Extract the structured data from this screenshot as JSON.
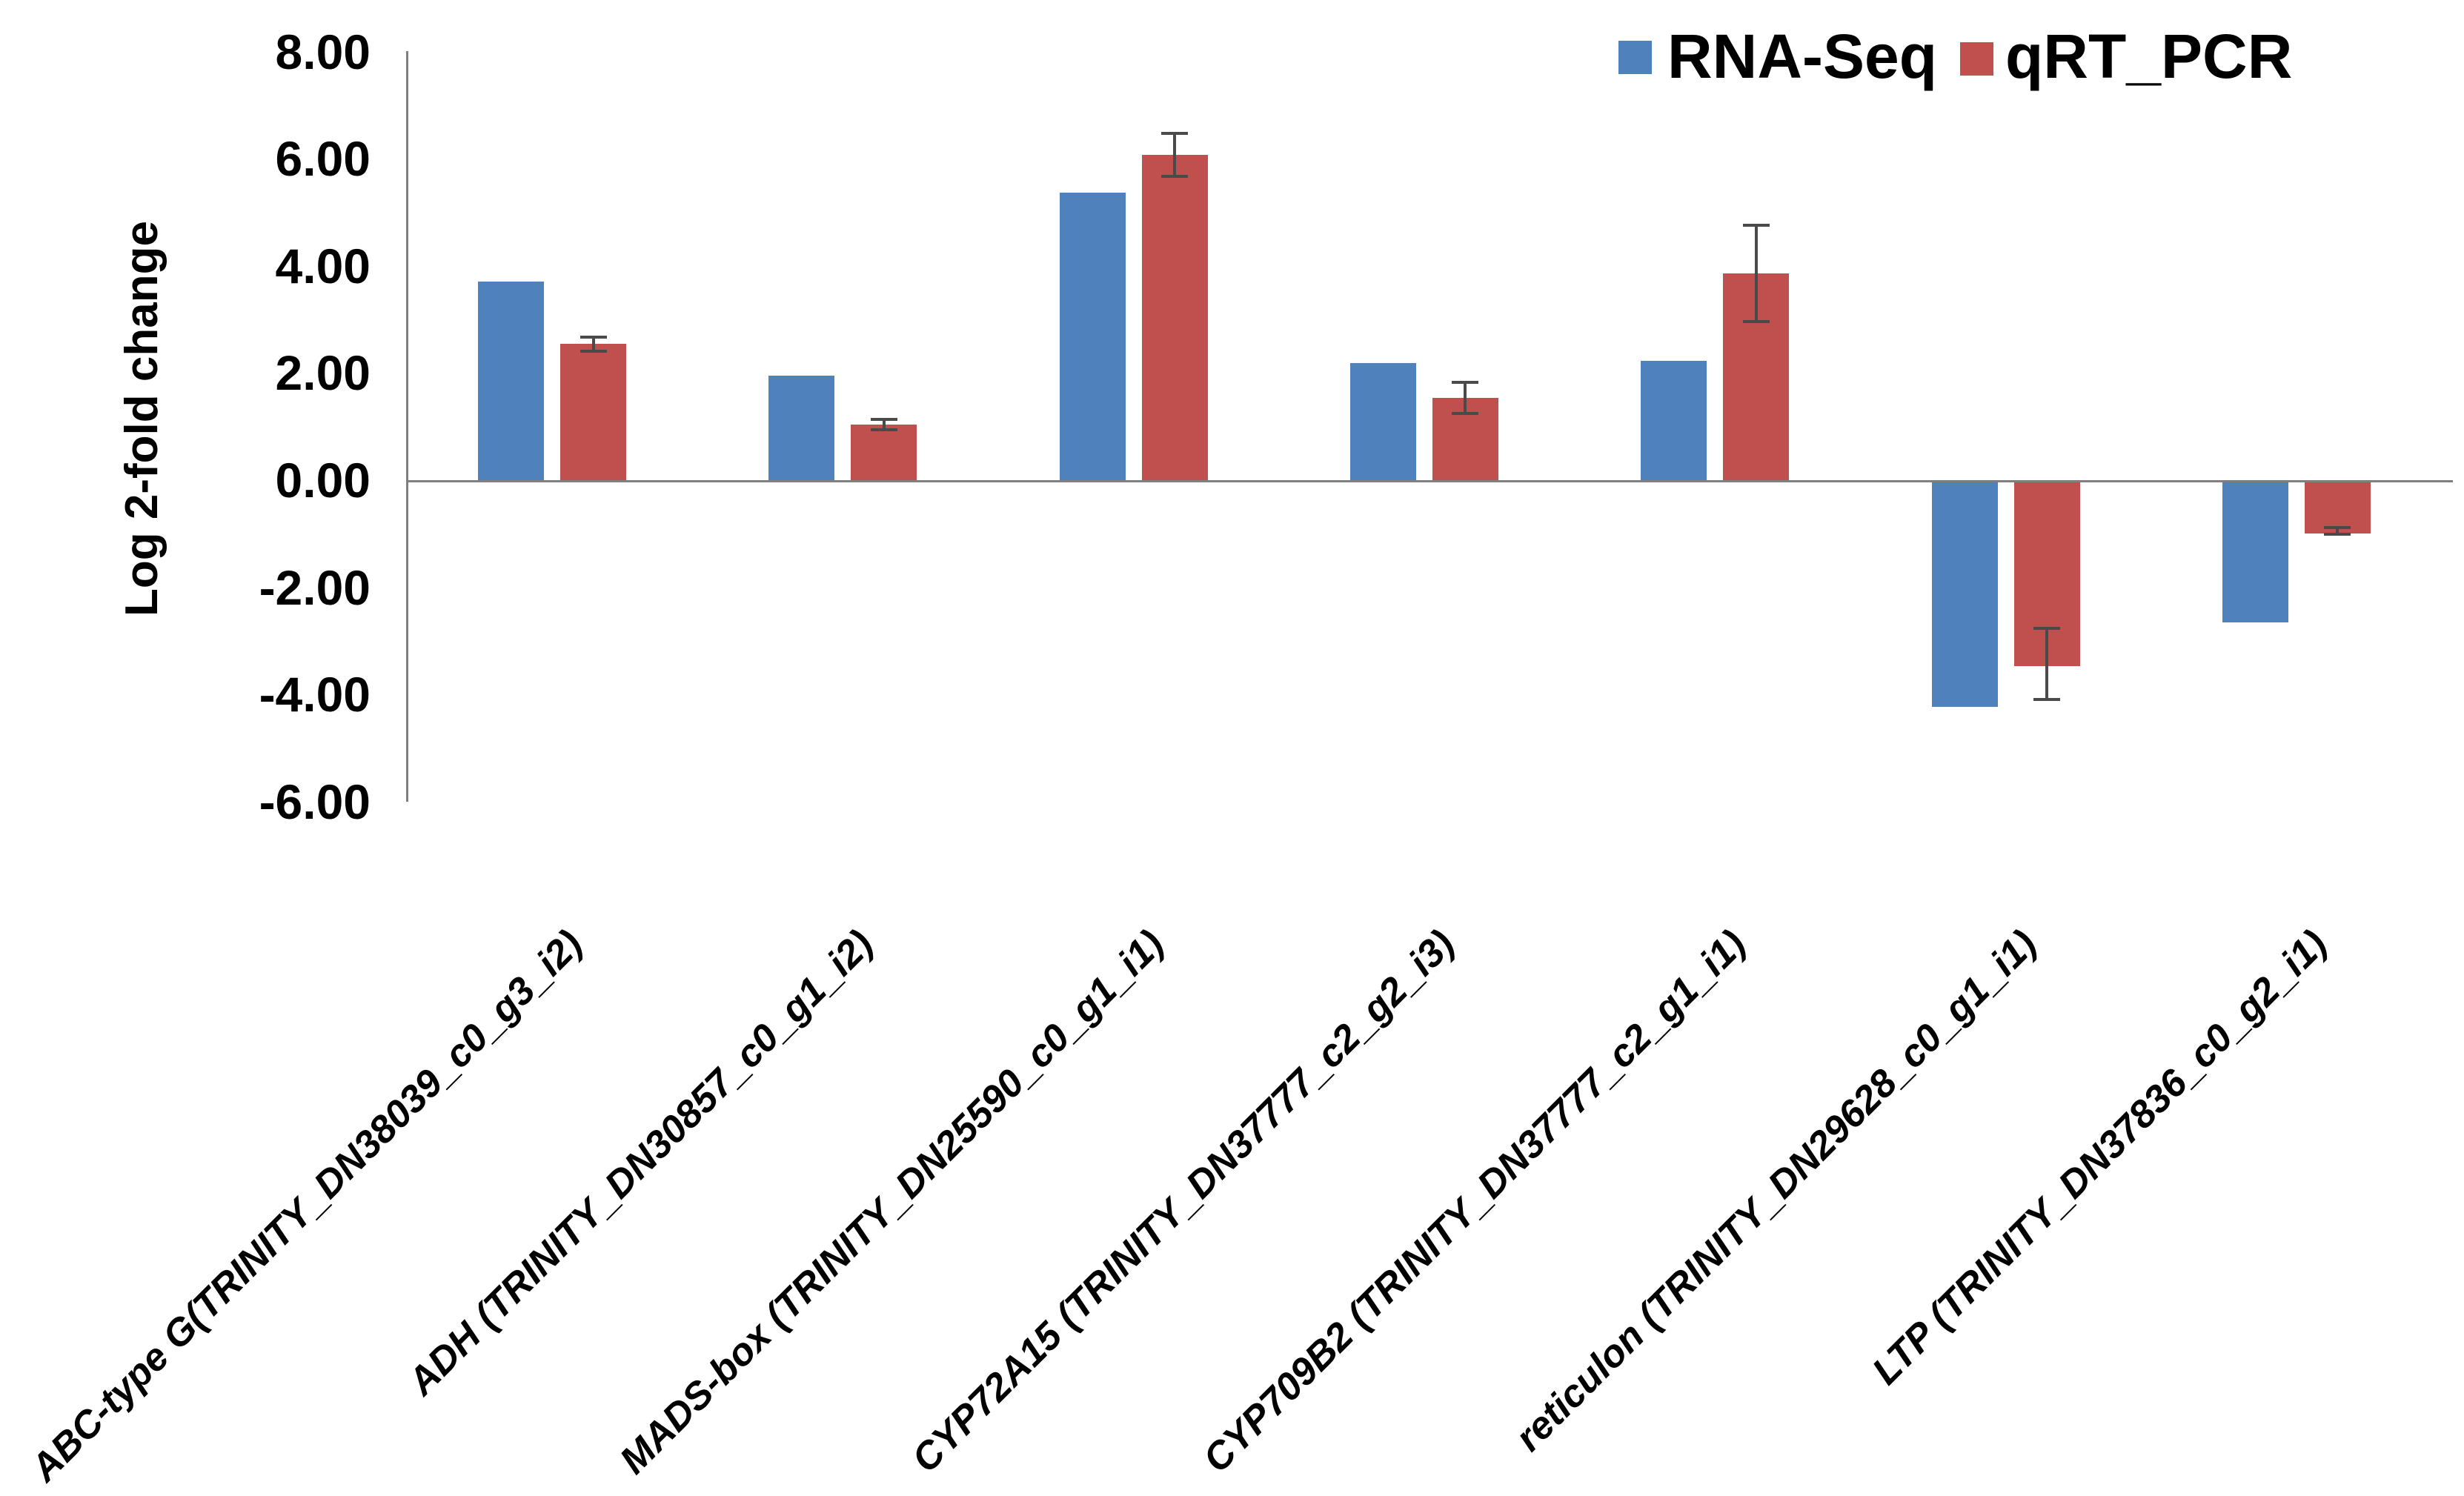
{
  "chart_data": {
    "type": "bar",
    "title": "",
    "xlabel": "",
    "ylabel": "Log 2-fold change",
    "ylim": [
      -6,
      8
    ],
    "ytick_step": 2,
    "ytick_labels": [
      "8.00",
      "6.00",
      "4.00",
      "2.00",
      "0.00",
      "-2.00",
      "-4.00",
      "-6.00"
    ],
    "grid": false,
    "legend_position": "top-right",
    "categories": [
      "ABC-type G(TRINITY_DN38039_c0_g3_i2)",
      "ADH (TRINITY_DN30857_c0_g1_i2)",
      "MADS-box (TRINITY_DN25590_c0_g1_i1)",
      "CYP72A15 (TRINITY_DN37777_c2_g2_i3)",
      "CYP709B2 (TRINITY_DN37777_c2_g1_i1)",
      "reticulon (TRINITY_DN29628_c0_g1_i1)",
      "LTP (TRINITY_DN37836_c0_g2_i1)"
    ],
    "series": [
      {
        "name": "RNA-Seq",
        "color": "#4f81bd",
        "values": [
          3.7,
          1.95,
          5.36,
          2.18,
          2.23,
          -4.19,
          -2.61
        ]
      },
      {
        "name": "qRT_PCR",
        "color": "#c0504d",
        "values": [
          2.54,
          1.04,
          6.07,
          1.53,
          3.86,
          -3.43,
          -0.95
        ],
        "errors": [
          0.13,
          0.1,
          0.4,
          0.29,
          0.9,
          0.66,
          0.06
        ]
      }
    ]
  },
  "colors": {
    "axis": "#7f7f7f",
    "error_bar": "#4a4a4a",
    "background": "#ffffff",
    "text": "#000000"
  }
}
